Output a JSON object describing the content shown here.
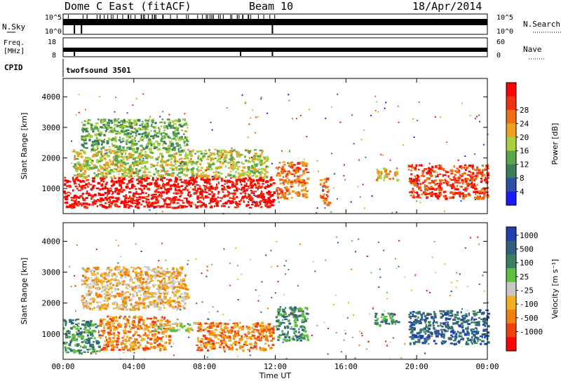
{
  "header": {
    "station": "Dome C East (fitACF)",
    "beam": "Beam 10",
    "date": "18/Apr/2014"
  },
  "top_panels": {
    "nsky_label": "N.Sky",
    "nsky_ticks": [
      "10^5",
      "10^0"
    ],
    "nsearch_label": "N.Search",
    "nsearch_ticks": [
      "10^5",
      "10^0"
    ],
    "freq_label_1": "Freq.",
    "freq_label_2": "[MHz]",
    "freq_ticks": [
      "18",
      "8"
    ],
    "nave_label": "Nave",
    "nave_ticks": [
      "60",
      "0"
    ],
    "cpid_label": "CPID",
    "cpid_value": "twofsound 3501"
  },
  "colors": {
    "power_scale": [
      "#1a1aff",
      "#2a4fa8",
      "#3c7d5a",
      "#5aa64a",
      "#a8cf3c",
      "#f0a020",
      "#f07010",
      "#f03010",
      "#ff0000"
    ],
    "velocity_scale": [
      "#2040b0",
      "#306080",
      "#3a8060",
      "#60c040",
      "#c8c8c8",
      "#f0b020",
      "#f08010",
      "#f04010",
      "#ff0000"
    ]
  },
  "chart_data": [
    {
      "type": "heatmap",
      "panel": "power",
      "ylabel": "Slant Range [km]",
      "xlabel": "",
      "x_ticks": [
        "00:00",
        "04:00",
        "08:00",
        "12:00",
        "16:00",
        "20:00",
        "00:00"
      ],
      "y_ticks": [
        "1000",
        "2000",
        "3000",
        "4000"
      ],
      "ylim": [
        180,
        4600
      ],
      "colorbar": {
        "label": "Power [dB]",
        "ticks": [
          "4",
          "8",
          "12",
          "16",
          "20",
          "24",
          "28"
        ]
      },
      "regions": [
        {
          "t0": 0.0,
          "t1": 11.9,
          "r0": 400,
          "r1": 1400,
          "level": 8
        },
        {
          "t0": 0.5,
          "t1": 11.5,
          "r0": 1400,
          "r1": 2300,
          "level": 4
        },
        {
          "t0": 1.0,
          "t1": 7.0,
          "r0": 2300,
          "r1": 3300,
          "level": 3
        },
        {
          "t0": 12.0,
          "t1": 13.8,
          "r0": 700,
          "r1": 1900,
          "level": 6
        },
        {
          "t0": 14.5,
          "t1": 15.0,
          "r0": 500,
          "r1": 1400,
          "level": 6
        },
        {
          "t0": 17.6,
          "t1": 18.9,
          "r0": 1300,
          "r1": 1700,
          "level": 5
        },
        {
          "t0": 19.5,
          "t1": 24.0,
          "r0": 700,
          "r1": 1800,
          "level": 7
        }
      ]
    },
    {
      "type": "heatmap",
      "panel": "velocity",
      "ylabel": "Slant Range [km]",
      "xlabel": "Time UT",
      "x_ticks": [
        "00:00",
        "04:00",
        "08:00",
        "12:00",
        "16:00",
        "20:00",
        "00:00"
      ],
      "y_ticks": [
        "1000",
        "2000",
        "3000",
        "4000"
      ],
      "ylim": [
        180,
        4600
      ],
      "colorbar": {
        "label": "Velocity [m s⁻¹]",
        "ticks": [
          "1000",
          "500",
          "100",
          "25",
          "-25",
          "-100",
          "-500",
          "-1000"
        ]
      },
      "regions": [
        {
          "t0": 0.0,
          "t1": 2.0,
          "r0": 400,
          "r1": 1500,
          "level": 2
        },
        {
          "t0": 2.0,
          "t1": 6.0,
          "r0": 500,
          "r1": 1600,
          "level": 6
        },
        {
          "t0": 5.0,
          "t1": 7.5,
          "r0": 1100,
          "r1": 1400,
          "level": 4
        },
        {
          "t0": 7.5,
          "t1": 11.9,
          "r0": 500,
          "r1": 1400,
          "level": 6
        },
        {
          "t0": 1.0,
          "t1": 7.0,
          "r0": 1800,
          "r1": 3200,
          "level": 5
        },
        {
          "t0": 12.0,
          "t1": 13.8,
          "r0": 800,
          "r1": 1900,
          "level": 2
        },
        {
          "t0": 17.6,
          "t1": 18.9,
          "r0": 1300,
          "r1": 1700,
          "level": 2
        },
        {
          "t0": 19.5,
          "t1": 24.0,
          "r0": 700,
          "r1": 1800,
          "level": 1
        }
      ]
    }
  ]
}
